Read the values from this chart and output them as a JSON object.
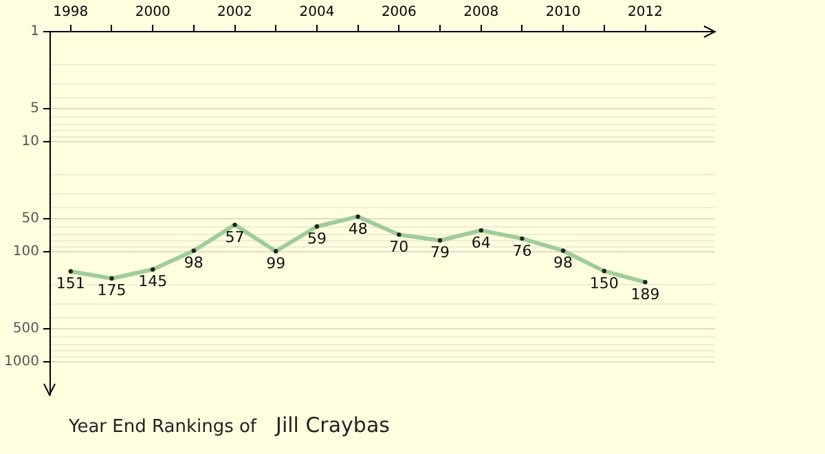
{
  "chart_data": {
    "type": "line",
    "annotations": [
      "Year End Rankings of",
      "Jill Craybas"
    ],
    "x": [
      1998,
      1999,
      2000,
      2001,
      2002,
      2003,
      2004,
      2005,
      2006,
      2007,
      2008,
      2009,
      2010,
      2011,
      2012
    ],
    "series": [
      {
        "color": "#9fcd9a",
        "values": [
          151,
          175,
          145,
          98,
          57,
          99,
          59,
          48,
          70,
          79,
          64,
          76,
          98,
          150,
          189
        ]
      }
    ],
    "data_labels": true,
    "marker": "circle",
    "line_style": "solid",
    "grid": "y",
    "legend": false,
    "log": "y",
    "xlim": [
      1997.5,
      2013.7
    ],
    "xticks": [
      1998,
      {
        "value": 1999,
        "label": null
      },
      2000,
      {
        "value": 2001,
        "label": null
      },
      2002,
      {
        "value": 2003,
        "label": null
      },
      2004,
      {
        "value": 2005,
        "label": null
      },
      2006,
      {
        "value": 2007,
        "label": null
      },
      2008,
      {
        "value": 2009,
        "label": null
      },
      2010,
      {
        "value": 2011,
        "label": null
      },
      2012
    ],
    "ylim": [
      2000,
      1
    ],
    "yticks": [
      1,
      {
        "value": 2,
        "label": null
      },
      {
        "value": 3,
        "label": null
      },
      {
        "value": 4,
        "label": null
      },
      5,
      {
        "value": 6,
        "label": null
      },
      {
        "value": 7,
        "label": null
      },
      {
        "value": 8,
        "label": null
      },
      {
        "value": 9,
        "label": null
      },
      10,
      {
        "value": 20,
        "label": null
      },
      {
        "value": 30,
        "label": null
      },
      {
        "value": 40,
        "label": null
      },
      50,
      {
        "value": 60,
        "label": null
      },
      {
        "value": 70,
        "label": null
      },
      {
        "value": 80,
        "label": null
      },
      {
        "value": 90,
        "label": null
      },
      100,
      {
        "value": 200,
        "label": null
      },
      {
        "value": 300,
        "label": null
      },
      {
        "value": 400,
        "label": null
      },
      500,
      {
        "value": 600,
        "label": null
      },
      {
        "value": 700,
        "label": null
      },
      {
        "value": 800,
        "label": null
      },
      {
        "value": 900,
        "label": null
      },
      1000
    ]
  }
}
